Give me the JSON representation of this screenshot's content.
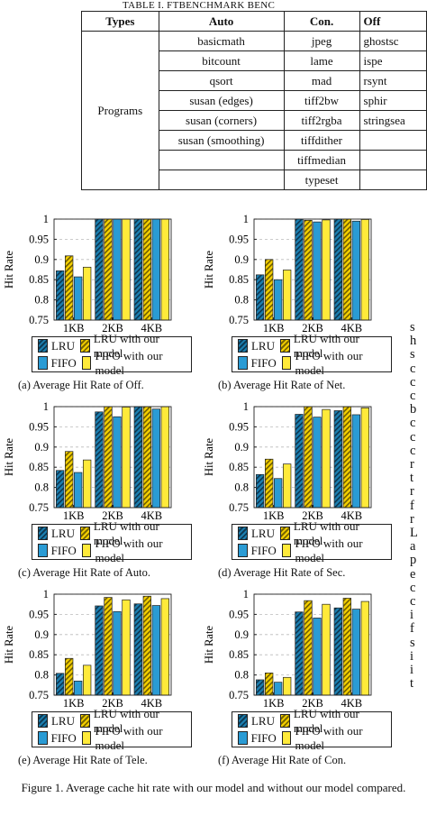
{
  "table": {
    "caption": "TABLE I.            FTBENCHMARK BENC",
    "headers": [
      "Types",
      "Auto",
      "Con.",
      "Off"
    ],
    "row_label": "Programs",
    "auto": [
      "basicmath",
      "bitcount",
      "qsort",
      "susan (edges)",
      "susan (corners)",
      "susan (smoothing)",
      "",
      ""
    ],
    "con": [
      "jpeg",
      "lame",
      "mad",
      "tiff2bw",
      "tiff2rgba",
      "tiffdither",
      "tiffmedian",
      "typeset"
    ],
    "off": [
      "ghostsc",
      "ispe",
      "rsynt",
      "sphir",
      "stringsea",
      "",
      "",
      ""
    ]
  },
  "legend": {
    "lru": "LRU",
    "lru_model": "LRU with our model",
    "fifo": "FIFO",
    "fifo_model": "FIFO with our model"
  },
  "colors": {
    "lru": "#1c7fb0",
    "lru_model": "#f5d000",
    "fifo": "#2a9bd4",
    "fifo_model": "#ffea3a"
  },
  "chart_data": [
    {
      "type": "bar",
      "caption": "(a) Average Hit Rate of Off.",
      "ylabel": "Hit Rate",
      "categories": [
        "1KB",
        "2KB",
        "4KB"
      ],
      "ylim": [
        0.75,
        1
      ],
      "yticks": [
        "0.75",
        "0.8",
        "0.85",
        "0.9",
        "0.95",
        "1"
      ],
      "series": [
        {
          "name": "LRU",
          "values": [
            0.872,
            1.0,
            1.0
          ]
        },
        {
          "name": "LRU with our model",
          "values": [
            0.909,
            1.0,
            1.0
          ]
        },
        {
          "name": "FIFO",
          "values": [
            0.857,
            1.0,
            1.0
          ]
        },
        {
          "name": "FIFO with our model",
          "values": [
            0.881,
            1.0,
            1.0
          ]
        }
      ]
    },
    {
      "type": "bar",
      "caption": "(b) Average Hit Rate of Net.",
      "ylabel": "Hit Rate",
      "categories": [
        "1KB",
        "2KB",
        "4KB"
      ],
      "ylim": [
        0.75,
        1
      ],
      "yticks": [
        "0.75",
        "0.8",
        "0.85",
        "0.9",
        "0.95",
        "1"
      ],
      "series": [
        {
          "name": "LRU",
          "values": [
            0.862,
            1.0,
            1.0
          ]
        },
        {
          "name": "LRU with our model",
          "values": [
            0.9,
            0.997,
            1.0
          ]
        },
        {
          "name": "FIFO",
          "values": [
            0.85,
            0.993,
            0.995
          ]
        },
        {
          "name": "FIFO with our model",
          "values": [
            0.874,
            0.998,
            0.999
          ]
        }
      ]
    },
    {
      "type": "bar",
      "caption": "(c) Average Hit Rate of Auto.",
      "ylabel": "Hit Rate",
      "categories": [
        "1KB",
        "2KB",
        "4KB"
      ],
      "ylim": [
        0.75,
        1
      ],
      "yticks": [
        "0.75",
        "0.8",
        "0.85",
        "0.9",
        "0.95",
        "1"
      ],
      "series": [
        {
          "name": "LRU",
          "values": [
            0.842,
            0.987,
            1.0
          ]
        },
        {
          "name": "LRU with our model",
          "values": [
            0.889,
            1.0,
            1.0
          ]
        },
        {
          "name": "FIFO",
          "values": [
            0.837,
            0.975,
            0.994
          ]
        },
        {
          "name": "FIFO with our model",
          "values": [
            0.868,
            0.999,
            1.0
          ]
        }
      ]
    },
    {
      "type": "bar",
      "caption": "(d) Average Hit Rate of Sec.",
      "ylabel": "Hit Rate",
      "categories": [
        "1KB",
        "2KB",
        "4KB"
      ],
      "ylim": [
        0.75,
        1
      ],
      "yticks": [
        "0.75",
        "0.8",
        "0.85",
        "0.9",
        "0.95",
        "1"
      ],
      "series": [
        {
          "name": "LRU",
          "values": [
            0.832,
            0.981,
            0.99
          ]
        },
        {
          "name": "LRU with our model",
          "values": [
            0.87,
            1.0,
            1.0
          ]
        },
        {
          "name": "FIFO",
          "values": [
            0.822,
            0.974,
            0.98
          ]
        },
        {
          "name": "FIFO with our model",
          "values": [
            0.858,
            0.993,
            0.997
          ]
        }
      ]
    },
    {
      "type": "bar",
      "caption": "(e) Average Hit Rate of Tele.",
      "ylabel": "Hit Rate",
      "categories": [
        "1KB",
        "2KB",
        "4KB"
      ],
      "ylim": [
        0.75,
        1
      ],
      "yticks": [
        "0.75",
        "0.8",
        "0.85",
        "0.9",
        "0.95",
        "1"
      ],
      "series": [
        {
          "name": "LRU",
          "values": [
            0.804,
            0.971,
            0.976
          ]
        },
        {
          "name": "LRU with our model",
          "values": [
            0.841,
            0.992,
            0.995
          ]
        },
        {
          "name": "FIFO",
          "values": [
            0.785,
            0.957,
            0.972
          ]
        },
        {
          "name": "FIFO with our model",
          "values": [
            0.824,
            0.986,
            0.989
          ]
        }
      ]
    },
    {
      "type": "bar",
      "caption": "(f) Average Hit Rate of Con.",
      "ylabel": "Hit Rate",
      "categories": [
        "1KB",
        "2KB",
        "4KB"
      ],
      "ylim": [
        0.75,
        1
      ],
      "yticks": [
        "0.75",
        "0.8",
        "0.85",
        "0.9",
        "0.95",
        "1"
      ],
      "series": [
        {
          "name": "LRU",
          "values": [
            0.788,
            0.956,
            0.966
          ]
        },
        {
          "name": "LRU with our model",
          "values": [
            0.805,
            0.984,
            0.99
          ]
        },
        {
          "name": "FIFO",
          "values": [
            0.782,
            0.941,
            0.963
          ]
        },
        {
          "name": "FIFO with our model",
          "values": [
            0.794,
            0.975,
            0.982
          ]
        }
      ]
    }
  ],
  "figure_caption": "Figure 1.    Average cache hit rate with our model and without our model compared.",
  "side_text": [
    "s",
    "h",
    "s",
    "c",
    "c",
    "c",
    "b",
    "c",
    "c",
    "c",
    "r",
    "t",
    "r",
    "f",
    "r",
    "L",
    "a",
    "p",
    "e",
    "c",
    "c",
    "i",
    "f",
    "s",
    "i",
    "i",
    "t"
  ]
}
